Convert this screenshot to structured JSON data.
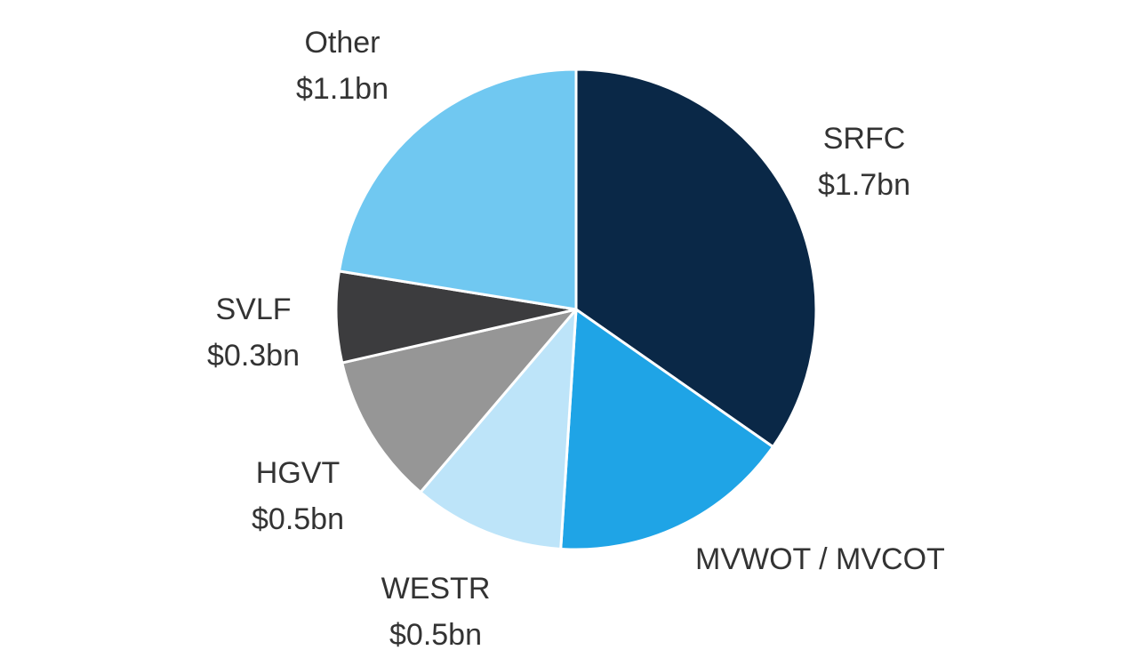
{
  "chart_data": {
    "type": "pie",
    "unit": "$bn",
    "slices": [
      {
        "name": "SRFC",
        "value": 1.7,
        "value_label": "$1.7bn",
        "color": "#0a2847"
      },
      {
        "name": "MVWOT / MVCOT",
        "value": 0.8,
        "value_label": "",
        "color": "#1fa4e6"
      },
      {
        "name": "WESTR",
        "value": 0.5,
        "value_label": "$0.5bn",
        "color": "#bde4f9"
      },
      {
        "name": "HGVT",
        "value": 0.5,
        "value_label": "$0.5bn",
        "color": "#969696"
      },
      {
        "name": "SVLF",
        "value": 0.3,
        "value_label": "$0.3bn",
        "color": "#3c3c3e"
      },
      {
        "name": "Other",
        "value": 1.1,
        "value_label": "$1.1bn",
        "color": "#70c8f1"
      }
    ]
  }
}
